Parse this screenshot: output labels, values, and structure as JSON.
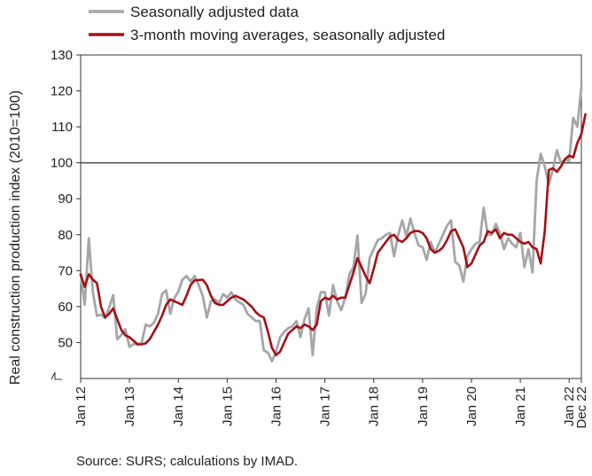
{
  "chart_data": {
    "type": "line",
    "ylabel": "Real construction production index (2010=100)",
    "xlabel": "",
    "ylim": [
      40,
      130
    ],
    "yticks": [
      50,
      60,
      70,
      80,
      90,
      100,
      110,
      120,
      130
    ],
    "x_start": "2012-01",
    "x_end": "2022-12",
    "xtick_labels": [
      "Jan 12",
      "Jan 13",
      "Jan 14",
      "Jan 15",
      "Jan 16",
      "Jan 17",
      "Jan 18",
      "Jan 19",
      "Jan 20",
      "Jan 21",
      "Jan 22",
      "Dec 22"
    ],
    "reference_line": 100,
    "grid": false,
    "legend_position": "top-left",
    "series": [
      {
        "name": "Seasonally adjusted data",
        "color": "#a6a6a6",
        "values": [
          68.8,
          60.5,
          79.0,
          64.0,
          57.4,
          57.8,
          56.8,
          59.7,
          63.2,
          50.9,
          52.1,
          53.7,
          48.8,
          49.6,
          49.5,
          50.0,
          55.0,
          54.5,
          55.5,
          58.0,
          63.5,
          64.5,
          58.0,
          62.3,
          64.2,
          67.5,
          68.5,
          67.0,
          68.5,
          66.0,
          63.0,
          57.0,
          61.5,
          62.0,
          61.0,
          63.5,
          62.5,
          64.0,
          62.0,
          61.2,
          60.5,
          58.0,
          57.0,
          56.0,
          56.0,
          47.8,
          47.2,
          44.8,
          47.5,
          51.5,
          53.0,
          54.0,
          54.5,
          56.0,
          51.5,
          56.5,
          59.5,
          46.5,
          59.5,
          64.0,
          64.0,
          57.5,
          66.0,
          61.5,
          59.0,
          62.5,
          69.0,
          71.0,
          79.8,
          61.0,
          63.5,
          73.5,
          76.0,
          78.5,
          79.0,
          80.0,
          80.5,
          74.0,
          80.0,
          84.0,
          79.5,
          84.5,
          80.5,
          77.0,
          76.5,
          73.0,
          78.0,
          75.0,
          77.5,
          80.0,
          82.5,
          84.0,
          72.5,
          71.5,
          67.0,
          74.0,
          76.0,
          77.5,
          78.0,
          87.5,
          80.0,
          80.0,
          83.0,
          80.5,
          76.0,
          79.0,
          77.5,
          76.5,
          80.5,
          71.0,
          76.0,
          69.5,
          95.0,
          102.5,
          99.0,
          94.0,
          98.0,
          103.5,
          100.0,
          101.0,
          100.5,
          112.5,
          110.0,
          121.0
        ]
      },
      {
        "name": "3-month moving averages, seasonally adjusted",
        "color": "#a50f15",
        "values": [
          69.0,
          65.5,
          69.0,
          67.5,
          66.5,
          60.0,
          57.0,
          58.0,
          59.5,
          56.5,
          53.5,
          52.0,
          51.5,
          50.5,
          49.5,
          49.5,
          49.8,
          51.0,
          53.0,
          55.0,
          57.5,
          60.5,
          62.0,
          61.5,
          61.0,
          60.5,
          63.0,
          66.0,
          67.3,
          67.4,
          67.5,
          66.0,
          63.0,
          61.0,
          60.5,
          60.5,
          61.5,
          62.5,
          63.0,
          62.5,
          62.0,
          61.0,
          60.0,
          58.5,
          57.5,
          57.0,
          53.0,
          48.5,
          46.5,
          47.5,
          50.0,
          52.5,
          53.5,
          54.5,
          54.0,
          55.0,
          54.5,
          53.5,
          55.0,
          61.5,
          62.5,
          62.0,
          63.0,
          62.0,
          62.5,
          62.5,
          66.0,
          69.5,
          73.5,
          71.0,
          68.5,
          66.5,
          70.5,
          75.0,
          76.5,
          78.0,
          79.5,
          80.0,
          78.5,
          78.0,
          79.0,
          80.5,
          81.0,
          81.0,
          80.5,
          79.0,
          76.0,
          75.0,
          75.5,
          76.5,
          78.5,
          81.0,
          81.5,
          79.0,
          76.5,
          71.0,
          72.0,
          74.5,
          77.0,
          78.0,
          81.0,
          80.5,
          81.5,
          79.0,
          80.5,
          80.0,
          80.0,
          79.0,
          78.0,
          77.5,
          78.0,
          76.5,
          76.0,
          72.0,
          81.0,
          98.0,
          98.5,
          97.5,
          99.0,
          101.0,
          102.0,
          101.5,
          105.5,
          108.0,
          113.5
        ]
      }
    ]
  },
  "source_note": "Source: SURS; calculations by IMAD."
}
